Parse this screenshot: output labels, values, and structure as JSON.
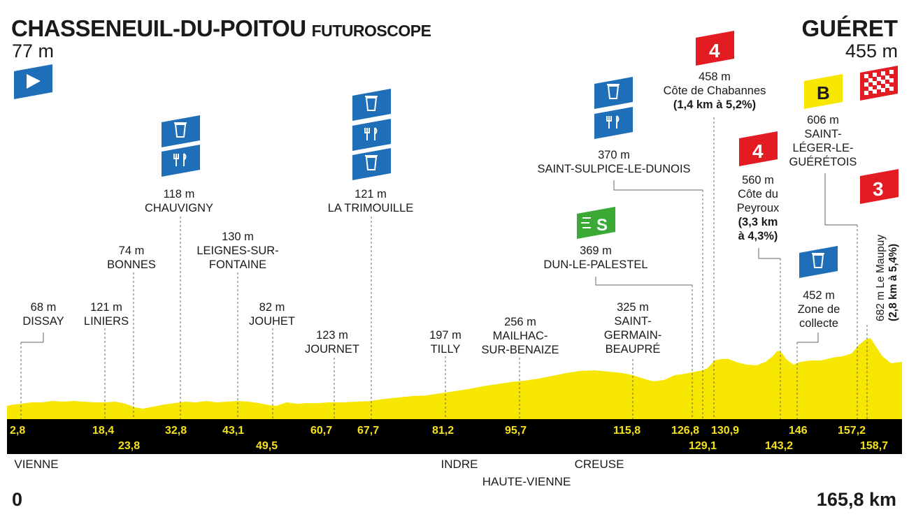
{
  "start": {
    "name": "CHASSENEUIL-DU-POITOU",
    "sub": "FUTUROSCOPE",
    "altitude": "77 m"
  },
  "finish": {
    "name": "GUÉRET",
    "altitude": "455 m"
  },
  "distance": {
    "start": "0",
    "end": "165,8 km"
  },
  "places": [
    {
      "alt": "68 m",
      "name": "DISSAY"
    },
    {
      "alt": "121 m",
      "name": "LINIERS"
    },
    {
      "alt": "74 m",
      "name": "BONNES"
    },
    {
      "alt": "118 m",
      "name": "CHAUVIGNY"
    },
    {
      "alt": "130 m",
      "name": "LEIGNES-SUR-",
      "name2": "FONTAINE"
    },
    {
      "alt": "82 m",
      "name": "JOUHET"
    },
    {
      "alt": "123 m",
      "name": "JOURNET"
    },
    {
      "alt": "121 m",
      "name": "LA TRIMOUILLE"
    },
    {
      "alt": "197 m",
      "name": "TILLY"
    },
    {
      "alt": "256 m",
      "name": "MAILHAC-",
      "name2": "SUR-BENAIZE"
    },
    {
      "alt": "325 m",
      "name": "SAINT-",
      "name2": "GERMAIN-",
      "name3": "BEAUPRÉ"
    },
    {
      "alt": "369 m",
      "name": "DUN-LE-PALESTEL"
    },
    {
      "alt": "370 m",
      "name": "SAINT-SULPICE-LE-DUNOIS"
    },
    {
      "alt": "458 m",
      "name": "Côte de Chabannes",
      "detail": "(1,4 km à 5,2%)"
    },
    {
      "alt": "560 m",
      "name": "Côte du",
      "name2": "Peyroux",
      "detail": "(3,3 km",
      "detail2": "à 4,3%)"
    },
    {
      "alt": "452 m",
      "name": "Zone de",
      "name2": "collecte"
    },
    {
      "alt": "606 m",
      "name": "SAINT-",
      "name2": "LÉGER-LE-",
      "name3": "GUÉRÉTOIS"
    },
    {
      "alt": "682 m",
      "name": "Le Maupuy",
      "detail": "(2,8 km à 5,4%)"
    }
  ],
  "km_top": [
    "2,8",
    "18,4",
    "32,8",
    "43,1",
    "60,7",
    "67,7",
    "81,2",
    "95,7",
    "115,8",
    "126,8",
    "130,9",
    "146",
    "157,2"
  ],
  "km_bottom": [
    "23,8",
    "49,5",
    "129,1",
    "143,2",
    "158,7"
  ],
  "departments": [
    "VIENNE",
    "INDRE",
    "HAUTE-VIENNE",
    "CREUSE"
  ],
  "markers": {
    "climb_cat_1": "4",
    "climb_cat_2": "4",
    "climb_cat_3": "3",
    "bonus": "B",
    "sprint": "S"
  },
  "colors": {
    "profile": "#f7e600",
    "band": "#000000",
    "km_text": "#f5e21c",
    "feed_blue": "#1f6fb8",
    "climb_red": "#e31b23",
    "sprint_green": "#3aa935",
    "bonus_yellow": "#f7e600"
  }
}
